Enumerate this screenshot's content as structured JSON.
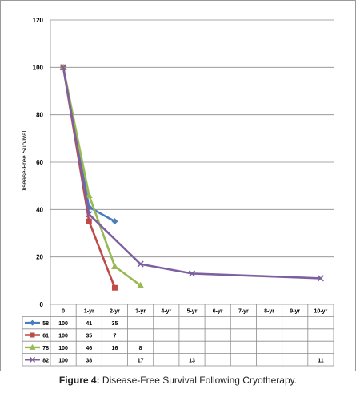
{
  "caption": {
    "label": "Figure 4:",
    "text": " Disease-Free Survival Following Cryotherapy."
  },
  "chart_data": {
    "type": "line",
    "ylabel": "Disease-Free Survival",
    "xlabel": "",
    "ylim": [
      0,
      120
    ],
    "yticks": [
      0,
      20,
      40,
      60,
      80,
      100,
      120
    ],
    "grid": "horizontal",
    "legend": "data table below chart",
    "categories": [
      "0",
      "1-yr",
      "2-yr",
      "3-yr",
      "4-yr",
      "5-yr",
      "6-yr",
      "7-yr",
      "8-yr",
      "9-yr",
      "10-yr"
    ],
    "series": [
      {
        "name": "58",
        "color": "#4a7ebb",
        "marker": "diamond",
        "values": [
          100,
          41,
          35,
          null,
          null,
          null,
          null,
          null,
          null,
          null,
          null
        ]
      },
      {
        "name": "61",
        "color": "#be4b48",
        "marker": "square",
        "values": [
          100,
          35,
          7,
          null,
          null,
          null,
          null,
          null,
          null,
          null,
          null
        ]
      },
      {
        "name": "78",
        "color": "#98b954",
        "marker": "triangle",
        "values": [
          100,
          46,
          16,
          8,
          null,
          null,
          null,
          null,
          null,
          null,
          null
        ]
      },
      {
        "name": "82",
        "color": "#7d60a0",
        "marker": "x",
        "values": [
          100,
          38,
          null,
          17,
          null,
          13,
          null,
          null,
          null,
          null,
          11
        ]
      }
    ],
    "series_lines": [
      [
        [
          0,
          100
        ],
        [
          1,
          41
        ],
        [
          2,
          35
        ]
      ],
      [
        [
          0,
          100
        ],
        [
          1,
          35
        ],
        [
          2,
          7
        ]
      ],
      [
        [
          0,
          100
        ],
        [
          1,
          46
        ],
        [
          2,
          16
        ],
        [
          3,
          8
        ]
      ],
      [
        [
          0,
          100
        ],
        [
          1,
          38
        ],
        [
          3,
          17
        ],
        [
          5,
          13
        ],
        [
          10,
          11
        ]
      ]
    ]
  }
}
